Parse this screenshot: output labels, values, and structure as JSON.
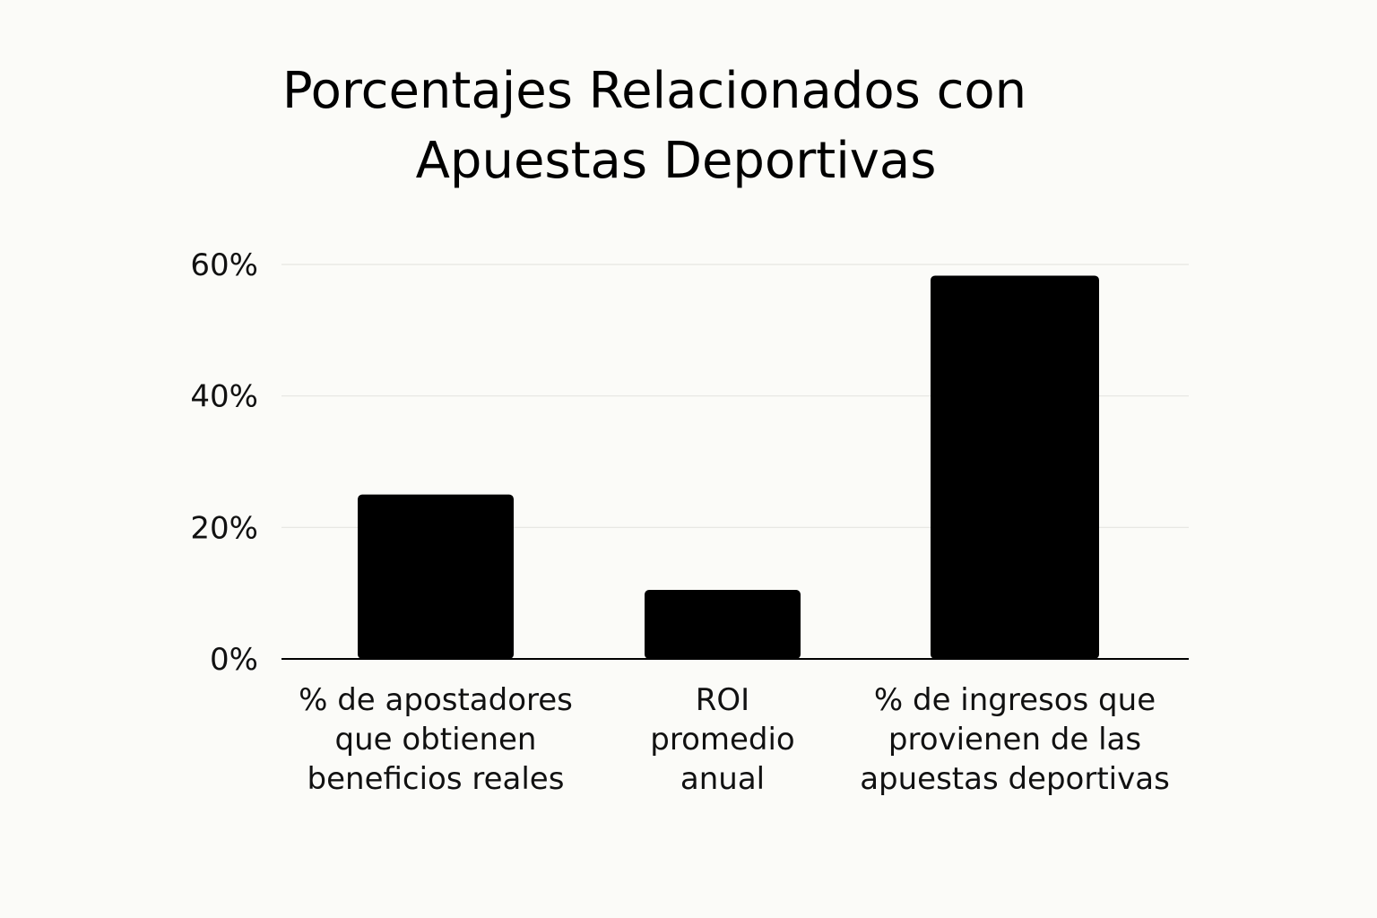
{
  "chart_data": {
    "type": "bar",
    "title_lines": [
      "Porcentajes Relacionados con",
      "Apuestas Deportivas"
    ],
    "categories": [
      [
        "% de apostadores",
        "que obtienen",
        "beneficios reales"
      ],
      [
        "ROI",
        "promedio",
        "anual"
      ],
      [
        "% de ingresos que",
        "provienen de las",
        "apuestas deportivas"
      ]
    ],
    "values": [
      25,
      10.5,
      58.3
    ],
    "ylim": [
      0,
      60
    ],
    "yticks": [
      0,
      20,
      40,
      60
    ],
    "ytick_labels": [
      "0%",
      "20%",
      "40%",
      "60%"
    ],
    "grid": true,
    "colors": {
      "bar": "#000000",
      "grid": "#e6e6e2",
      "axis": "#000000",
      "background": "#fbfbf8"
    }
  }
}
